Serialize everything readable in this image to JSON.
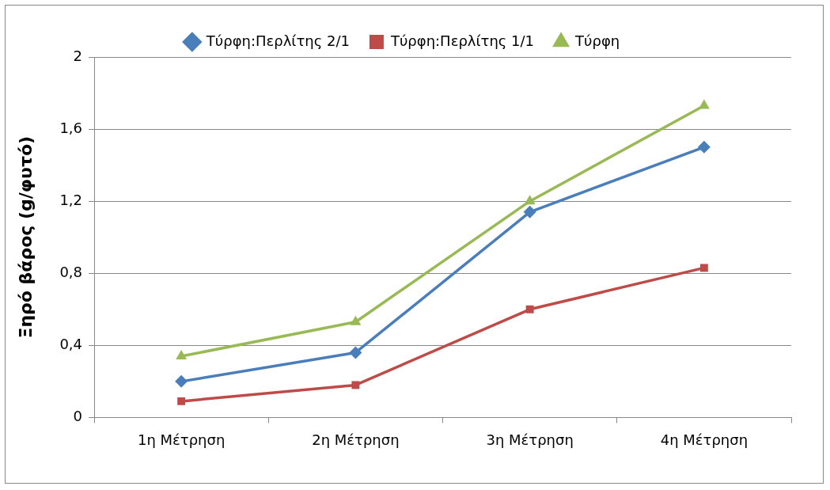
{
  "chart_data": {
    "type": "line",
    "ylabel": "Ξηρό βάρος (g/φυτό)",
    "categories": [
      "1η Μέτρηση",
      "2η Μέτρηση",
      "3η Μέτρηση",
      "4η Μέτρηση"
    ],
    "series": [
      {
        "name": "Τύρφη:Περλίτης 2/1",
        "color": "#4a7ebb",
        "marker": "diamond",
        "values": [
          0.2,
          0.36,
          1.14,
          1.5
        ]
      },
      {
        "name": "Τύρφη:Περλίτης 1/1",
        "color": "#be4b48",
        "marker": "square",
        "values": [
          0.09,
          0.18,
          0.6,
          0.83
        ]
      },
      {
        "name": "Τύρφη",
        "color": "#98b954",
        "marker": "triangle",
        "values": [
          0.34,
          0.53,
          1.2,
          1.73
        ]
      }
    ],
    "ylim": [
      0,
      2
    ],
    "yticks": [
      0,
      {
        "value": 0.4,
        "label": "0,4"
      },
      {
        "value": 0.8,
        "label": "0,8"
      },
      {
        "value": 1.2,
        "label": "1,2"
      },
      {
        "value": 1.6,
        "label": "1,6"
      },
      2
    ],
    "grid": "y",
    "legend": "top",
    "line_style": "solid"
  }
}
